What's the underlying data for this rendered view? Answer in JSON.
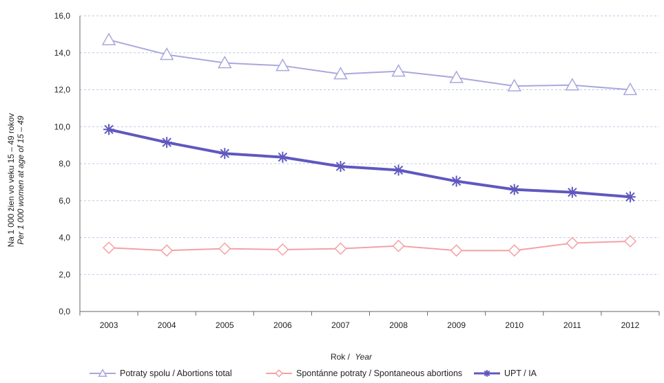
{
  "chart_data": {
    "type": "line",
    "categories": [
      "2003",
      "2004",
      "2005",
      "2006",
      "2007",
      "2008",
      "2009",
      "2010",
      "2011",
      "2012"
    ],
    "ylim": [
      0,
      16
    ],
    "yticks": [
      "0,0",
      "2,0",
      "4,0",
      "6,0",
      "8,0",
      "10,0",
      "12,0",
      "14,0",
      "16,0"
    ],
    "grid": true,
    "xlabel": {
      "main": "Rok /",
      "italic": "Year"
    },
    "ylabel": {
      "main": "Na 1 000 žien vo veku 15 – 49 rokov",
      "italic": "Per 1 000 women at age of 15 – 49"
    },
    "legend_position": "bottom",
    "series": [
      {
        "name": "Potraty spolu / Abortions total",
        "marker": "triangle",
        "color": "#a9a6dd",
        "values": [
          14.7,
          13.9,
          13.45,
          13.3,
          12.85,
          13.0,
          12.65,
          12.2,
          12.25,
          12.0
        ]
      },
      {
        "name": "Spontánne potraty / Spontaneous abortions",
        "marker": "diamond",
        "color": "#f4a0a4",
        "values": [
          3.45,
          3.3,
          3.4,
          3.35,
          3.4,
          3.55,
          3.3,
          3.3,
          3.7,
          3.8
        ]
      },
      {
        "name": "UPT / IA",
        "marker": "star",
        "color": "#5f58bf",
        "values": [
          9.85,
          9.15,
          8.55,
          8.35,
          7.85,
          7.65,
          7.05,
          6.6,
          6.45,
          6.2
        ]
      }
    ]
  }
}
